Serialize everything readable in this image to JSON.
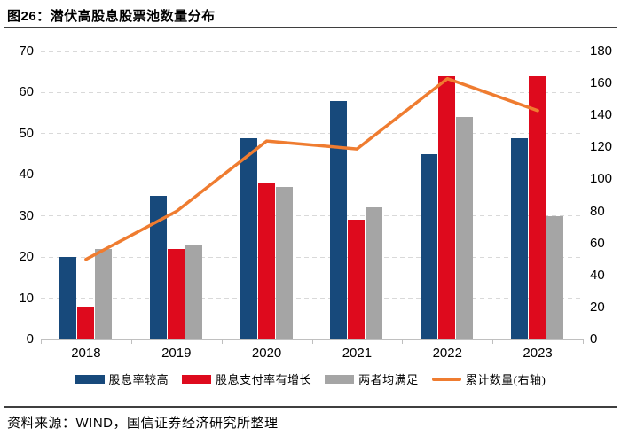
{
  "header": {
    "title": "图26：潜伏高股息股票池数量分布"
  },
  "footer": {
    "source": "资料来源：WIND，国信证券经济研究所整理"
  },
  "colors": {
    "blue": "#17497B",
    "red": "#DE0A1D",
    "gray": "#A5A5A5",
    "orange": "#EF7C30",
    "grid": "#D9D9D9",
    "axis": "#C0C0C0",
    "rule": "#3F3F3F",
    "text": "#000000"
  },
  "chart_data": {
    "type": "bar",
    "subtype": "grouped-bars-with-line-on-secondary-axis",
    "title": "图26：潜伏高股息股票池数量分布",
    "categories": [
      "2018",
      "2019",
      "2020",
      "2021",
      "2022",
      "2023"
    ],
    "series": [
      {
        "key": "dividend-yield-high",
        "name": "股息率较高",
        "kind": "bar",
        "axis": "left",
        "color": "#17497B",
        "values": [
          20,
          35,
          49,
          58,
          45,
          49
        ]
      },
      {
        "key": "payout-ratio-growth",
        "name": "股息支付率有增长",
        "kind": "bar",
        "axis": "left",
        "color": "#DE0A1D",
        "values": [
          8,
          22,
          38,
          29,
          64,
          64
        ]
      },
      {
        "key": "both-satisfied",
        "name": "两者均满足",
        "kind": "bar",
        "axis": "left",
        "color": "#A5A5A5",
        "values": [
          22,
          23,
          37,
          32,
          54,
          30
        ]
      },
      {
        "key": "cumulative-count",
        "name": "累计数量(右轴)",
        "kind": "line",
        "axis": "right",
        "color": "#EF7C30",
        "values": [
          50,
          80,
          124,
          119,
          163,
          143
        ]
      }
    ],
    "left_axis": {
      "min": 0,
      "max": 70,
      "step": 10,
      "ticks": [
        0,
        10,
        20,
        30,
        40,
        50,
        60,
        70
      ]
    },
    "right_axis": {
      "min": 0,
      "max": 180,
      "step": 20,
      "ticks": [
        0,
        20,
        40,
        60,
        80,
        100,
        120,
        140,
        160,
        180
      ]
    },
    "grid": "horizontal dashed, left-axis intervals",
    "legend_position": "bottom"
  }
}
